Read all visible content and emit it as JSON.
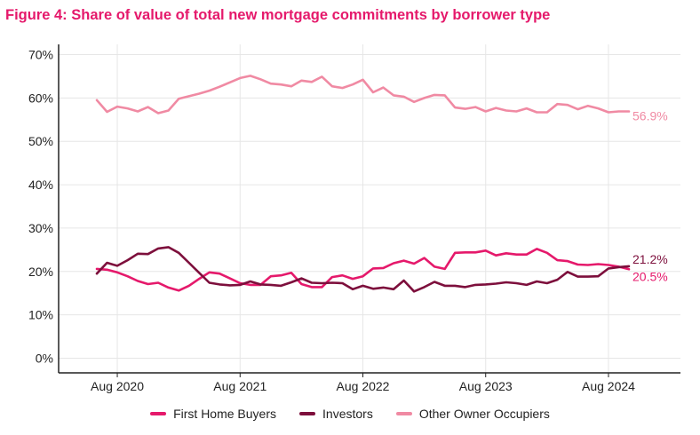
{
  "title": "Figure 4:  Share of value of total new mortgage commitments by borrower type",
  "colors": {
    "title": "#e5196b",
    "first_home_buyers": "#e5196b",
    "investors": "#7d0f3c",
    "other_owner_occupiers": "#f08aa3"
  },
  "chart_data": {
    "type": "line",
    "title": "Figure 4:  Share of value of total new mortgage commitments by borrower type",
    "xlabel": "",
    "ylabel": "",
    "ylim": [
      0,
      70
    ],
    "yticks": [
      "0%",
      "10%",
      "20%",
      "30%",
      "40%",
      "50%",
      "60%",
      "70%"
    ],
    "xticks": [
      "Aug 2020",
      "Aug 2021",
      "Aug 2022",
      "Aug 2023",
      "Aug 2024"
    ],
    "x_start": "Jun 2020",
    "x_end": "Aug 2024",
    "grid": true,
    "legend_position": "bottom",
    "series": [
      {
        "name": "First Home Buyers",
        "color": "#e5196b",
        "end_label": "20.5%",
        "values": [
          20.6,
          20.4,
          19.8,
          18.9,
          17.8,
          17.1,
          17.4,
          16.3,
          15.6,
          16.7,
          18.3,
          19.8,
          19.5,
          18.4,
          17.3,
          16.9,
          16.9,
          18.9,
          19.1,
          19.7,
          17.1,
          16.4,
          16.4,
          18.7,
          19.1,
          18.3,
          18.9,
          20.7,
          20.8,
          21.9,
          22.5,
          21.8,
          23.1,
          21.1,
          20.6,
          24.3,
          24.4,
          24.4,
          24.8,
          23.7,
          24.2,
          23.9,
          23.9,
          25.2,
          24.3,
          22.6,
          22.4,
          21.6,
          21.5,
          21.7,
          21.5,
          21.1,
          20.5
        ]
      },
      {
        "name": "Investors",
        "color": "#7d0f3c",
        "end_label": "21.2%",
        "values": [
          19.5,
          22.0,
          21.3,
          22.6,
          24.1,
          24.0,
          25.3,
          25.6,
          24.3,
          22.0,
          19.7,
          17.4,
          17.0,
          16.8,
          16.9,
          17.7,
          17.0,
          16.9,
          16.7,
          17.5,
          18.4,
          17.4,
          17.3,
          17.4,
          17.3,
          15.9,
          16.7,
          16.0,
          16.3,
          15.9,
          17.9,
          15.4,
          16.4,
          17.6,
          16.7,
          16.7,
          16.4,
          16.9,
          17.0,
          17.2,
          17.5,
          17.3,
          16.9,
          17.7,
          17.3,
          18.1,
          19.9,
          18.8,
          18.8,
          18.9,
          20.7,
          21.0,
          21.2
        ]
      },
      {
        "name": "Other Owner Occupiers",
        "color": "#f08aa3",
        "end_label": "56.9%",
        "values": [
          59.5,
          56.8,
          58.0,
          57.6,
          56.9,
          57.9,
          56.5,
          57.1,
          59.8,
          60.4,
          61.0,
          61.7,
          62.6,
          63.6,
          64.6,
          65.1,
          64.3,
          63.3,
          63.1,
          62.7,
          64.0,
          63.7,
          64.9,
          62.7,
          62.3,
          63.1,
          64.2,
          61.3,
          62.4,
          60.6,
          60.3,
          59.1,
          60.0,
          60.7,
          60.6,
          57.8,
          57.5,
          57.9,
          56.9,
          57.7,
          57.1,
          56.9,
          57.6,
          56.7,
          56.7,
          58.6,
          58.4,
          57.4,
          58.2,
          57.6,
          56.7,
          56.9,
          56.9
        ]
      }
    ]
  },
  "legend": {
    "items": [
      {
        "label": "First Home Buyers",
        "color": "#e5196b"
      },
      {
        "label": "Investors",
        "color": "#7d0f3c"
      },
      {
        "label": "Other Owner Occupiers",
        "color": "#f08aa3"
      }
    ]
  }
}
